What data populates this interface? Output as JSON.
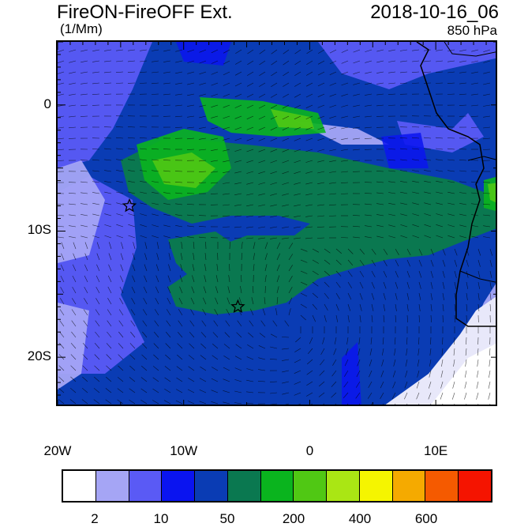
{
  "header": {
    "title": "FireON-FireOFF Ext.",
    "units": "(1/Mm)",
    "datetime": "2018-10-16_06",
    "level": "850 hPa"
  },
  "map": {
    "lon_range": [
      -20,
      15
    ],
    "lat_range": [
      -24,
      5
    ],
    "y_ticks": [
      {
        "lat": 0,
        "label": "0"
      },
      {
        "lat": -10,
        "label": "10S"
      },
      {
        "lat": -20,
        "label": "20S"
      }
    ],
    "x_ticks": [
      {
        "lon": -20,
        "label": "20W"
      },
      {
        "lon": -10,
        "label": "10W"
      },
      {
        "lon": 0,
        "label": "0"
      },
      {
        "lon": 10,
        "label": "10E"
      }
    ],
    "markers": [
      {
        "type": "star",
        "lon": -14.3,
        "lat": -8.0,
        "name": "star-marker-1"
      },
      {
        "type": "star",
        "lon": -5.7,
        "lat": -16.0,
        "name": "star-marker-2"
      }
    ]
  },
  "colorbar": {
    "colors": [
      "#ffffff",
      "#a5a5f5",
      "#5a5af5",
      "#0a14f0",
      "#0a3cb4",
      "#0a7850",
      "#0ab41e",
      "#50c814",
      "#aae614",
      "#f5f500",
      "#f5aa00",
      "#f55a00",
      "#f51400"
    ],
    "labels": [
      {
        "value": "2",
        "boundary": 1
      },
      {
        "value": "10",
        "boundary": 3
      },
      {
        "value": "50",
        "boundary": 5
      },
      {
        "value": "200",
        "boundary": 7
      },
      {
        "value": "400",
        "boundary": 9
      },
      {
        "value": "600",
        "boundary": 11
      }
    ]
  }
}
